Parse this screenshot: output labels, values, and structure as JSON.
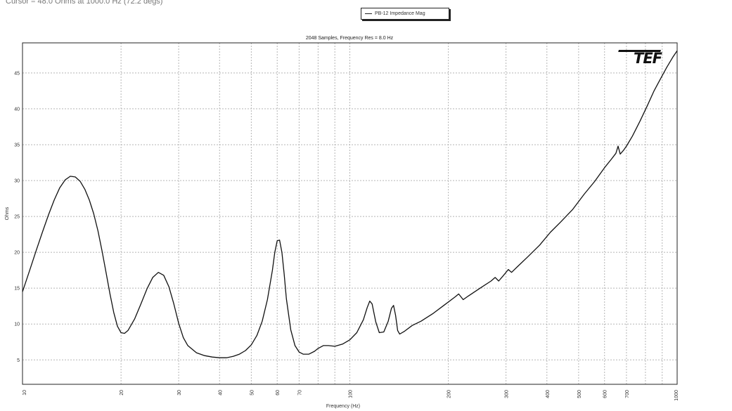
{
  "cursor_readout": "Cursor = 48.0 Ohms at 1000.0 Hz (72.2 degs)",
  "legend": {
    "label": "PB-12 Impedance Mag"
  },
  "logo_text": "TEF",
  "colors": {
    "trace": "#111111",
    "grid": "#b5b5b5",
    "frame": "#222222"
  },
  "chart_data": {
    "type": "line",
    "title": "2048 Samples, Frequency Res = 8.0 Hz",
    "xlabel": "Frequency (Hz)",
    "ylabel": "Ohms",
    "x_scale": "log",
    "xlim": [
      10,
      1000
    ],
    "ylim": [
      1.6,
      49.2
    ],
    "grid": true,
    "legend_position": "top-center",
    "x_ticks": [
      10,
      20,
      30,
      40,
      50,
      60,
      70,
      80,
      90,
      100,
      200,
      300,
      400,
      500,
      600,
      700,
      800,
      900,
      1000
    ],
    "x_tick_labels": [
      "10",
      "20",
      "30",
      "40",
      "50",
      "60",
      "70",
      "",
      "",
      "100",
      "200",
      "300",
      "400",
      "500",
      "600",
      "700",
      "",
      "",
      "1000"
    ],
    "y_ticks": [
      5,
      10,
      15,
      20,
      25,
      30,
      35,
      40,
      45
    ],
    "y_tick_labels": [
      "5",
      "10",
      "15",
      "20",
      "25",
      "30",
      "35",
      "40",
      "45"
    ],
    "series": [
      {
        "name": "PB-12 Impedance Mag",
        "points": [
          [
            10,
            14.5
          ],
          [
            10.5,
            17.4
          ],
          [
            11,
            20.2
          ],
          [
            11.5,
            22.8
          ],
          [
            12,
            25.2
          ],
          [
            12.5,
            27.3
          ],
          [
            13,
            29.0
          ],
          [
            13.5,
            30.1
          ],
          [
            14,
            30.6
          ],
          [
            14.5,
            30.5
          ],
          [
            15,
            29.9
          ],
          [
            15.5,
            28.8
          ],
          [
            16,
            27.3
          ],
          [
            16.5,
            25.4
          ],
          [
            17,
            23.0
          ],
          [
            17.5,
            20.2
          ],
          [
            18,
            17.2
          ],
          [
            18.5,
            14.2
          ],
          [
            19,
            11.6
          ],
          [
            19.5,
            9.7
          ],
          [
            20,
            8.8
          ],
          [
            20.5,
            8.7
          ],
          [
            21,
            9.1
          ],
          [
            22,
            10.7
          ],
          [
            23,
            12.8
          ],
          [
            24,
            14.9
          ],
          [
            25,
            16.5
          ],
          [
            26,
            17.2
          ],
          [
            27,
            16.8
          ],
          [
            28,
            15.2
          ],
          [
            29,
            12.8
          ],
          [
            30,
            10.1
          ],
          [
            31,
            8.1
          ],
          [
            32,
            7.0
          ],
          [
            34,
            6.0
          ],
          [
            36,
            5.6
          ],
          [
            38,
            5.4
          ],
          [
            40,
            5.3
          ],
          [
            42,
            5.3
          ],
          [
            44,
            5.5
          ],
          [
            46,
            5.8
          ],
          [
            48,
            6.3
          ],
          [
            50,
            7.1
          ],
          [
            52,
            8.4
          ],
          [
            54,
            10.4
          ],
          [
            56,
            13.4
          ],
          [
            58,
            17.5
          ],
          [
            59,
            20.0
          ],
          [
            60,
            21.6
          ],
          [
            61,
            21.7
          ],
          [
            62,
            20.0
          ],
          [
            63,
            17.0
          ],
          [
            64,
            13.5
          ],
          [
            66,
            9.2
          ],
          [
            68,
            7.0
          ],
          [
            70,
            6.1
          ],
          [
            72,
            5.8
          ],
          [
            75,
            5.8
          ],
          [
            78,
            6.2
          ],
          [
            80,
            6.6
          ],
          [
            83,
            7.0
          ],
          [
            86,
            7.0
          ],
          [
            90,
            6.9
          ],
          [
            95,
            7.2
          ],
          [
            100,
            7.8
          ],
          [
            105,
            8.8
          ],
          [
            110,
            10.6
          ],
          [
            113,
            12.3
          ],
          [
            115,
            13.2
          ],
          [
            117,
            12.8
          ],
          [
            120,
            10.3
          ],
          [
            123,
            8.8
          ],
          [
            127,
            8.9
          ],
          [
            131,
            10.4
          ],
          [
            134,
            12.2
          ],
          [
            136,
            12.6
          ],
          [
            138,
            11.2
          ],
          [
            140,
            9.1
          ],
          [
            142,
            8.6
          ],
          [
            147,
            9.0
          ],
          [
            155,
            9.8
          ],
          [
            165,
            10.4
          ],
          [
            180,
            11.5
          ],
          [
            195,
            12.7
          ],
          [
            210,
            13.8
          ],
          [
            215,
            14.2
          ],
          [
            222,
            13.4
          ],
          [
            230,
            13.9
          ],
          [
            250,
            15.0
          ],
          [
            270,
            16.0
          ],
          [
            278,
            16.5
          ],
          [
            285,
            16.0
          ],
          [
            295,
            16.8
          ],
          [
            305,
            17.6
          ],
          [
            312,
            17.2
          ],
          [
            325,
            18.0
          ],
          [
            350,
            19.4
          ],
          [
            380,
            21.0
          ],
          [
            410,
            22.8
          ],
          [
            440,
            24.2
          ],
          [
            480,
            26.0
          ],
          [
            520,
            28.1
          ],
          [
            560,
            29.9
          ],
          [
            600,
            31.8
          ],
          [
            630,
            33.0
          ],
          [
            650,
            33.8
          ],
          [
            660,
            34.8
          ],
          [
            670,
            33.7
          ],
          [
            685,
            34.2
          ],
          [
            700,
            34.8
          ],
          [
            730,
            36.2
          ],
          [
            770,
            38.3
          ],
          [
            810,
            40.4
          ],
          [
            850,
            42.5
          ],
          [
            890,
            44.2
          ],
          [
            930,
            45.8
          ],
          [
            970,
            47.2
          ],
          [
            1000,
            48.1
          ]
        ]
      }
    ]
  }
}
